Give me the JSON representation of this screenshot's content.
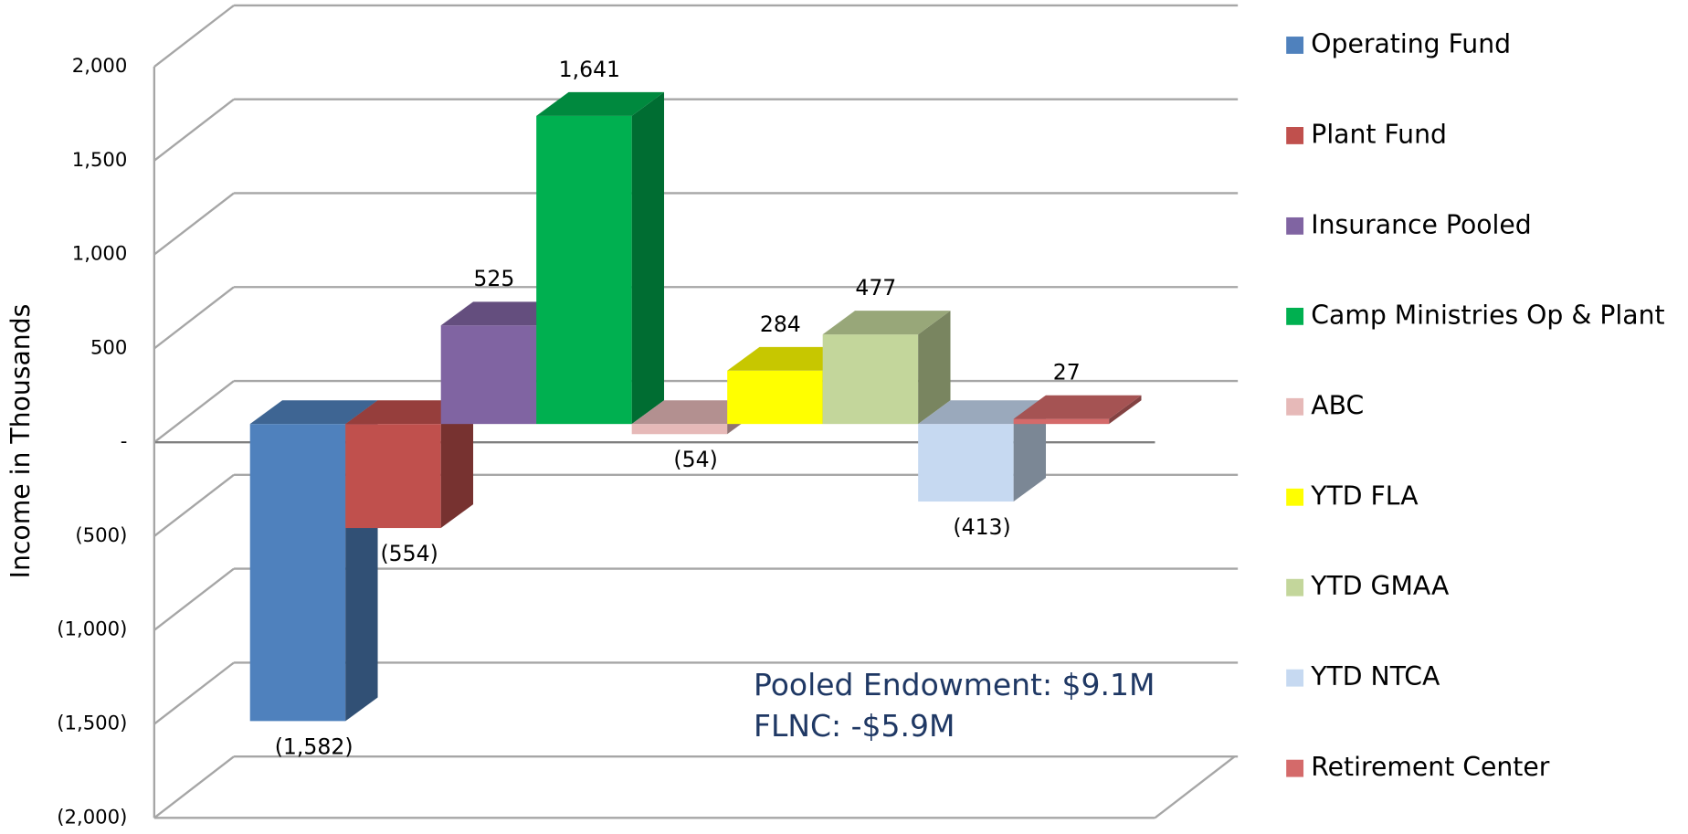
{
  "chart_data": {
    "type": "bar",
    "y_label": "Income in Thousands",
    "ylim": [
      -2000,
      2000
    ],
    "yticks": [
      {
        "value": -2000,
        "label": "(2,000)"
      },
      {
        "value": -1500,
        "label": "(1,500)"
      },
      {
        "value": -1000,
        "label": "(1,000)"
      },
      {
        "value": -500,
        "label": "(500)"
      },
      {
        "value": 0,
        "label": "-"
      },
      500,
      {
        "value": 1000,
        "label": "1,000"
      },
      {
        "value": 1500,
        "label": "1,500"
      },
      {
        "value": 2000,
        "label": "2,000"
      }
    ],
    "grid": true,
    "legend": "right",
    "series": [
      {
        "name": "Operating Fund",
        "color": "#4f81bd",
        "values": [
          -1582
        ],
        "value_labels": [
          "(1,582)"
        ]
      },
      {
        "name": "Plant Fund",
        "color": "#c0504d",
        "values": [
          -554
        ],
        "value_labels": [
          "(554)"
        ]
      },
      {
        "name": "Insurance Pooled",
        "color": "#8064a2",
        "values": [
          525
        ]
      },
      {
        "name": "Camp Ministries Op & Plant",
        "color": "#00b050",
        "values": [
          1641
        ],
        "value_labels": [
          "1,641"
        ]
      },
      {
        "name": "ABC",
        "color": "#e6b9b8",
        "values": [
          -54
        ],
        "value_labels": [
          "(54)"
        ]
      },
      {
        "name": "YTD FLA",
        "color": "#ffff00",
        "values": [
          284
        ]
      },
      {
        "name": "YTD GMAA",
        "color": "#c3d69b",
        "values": [
          477
        ]
      },
      {
        "name": "YTD NTCA",
        "color": "#c6d9f1",
        "values": [
          -413
        ],
        "value_labels": [
          "(413)"
        ]
      },
      {
        "name": "Retirement Center",
        "color": "#d46a6a",
        "values": [
          27
        ]
      }
    ],
    "annotations": [
      "Pooled Endowment: $9.1M",
      "FLNC:  -$5.9M"
    ]
  }
}
